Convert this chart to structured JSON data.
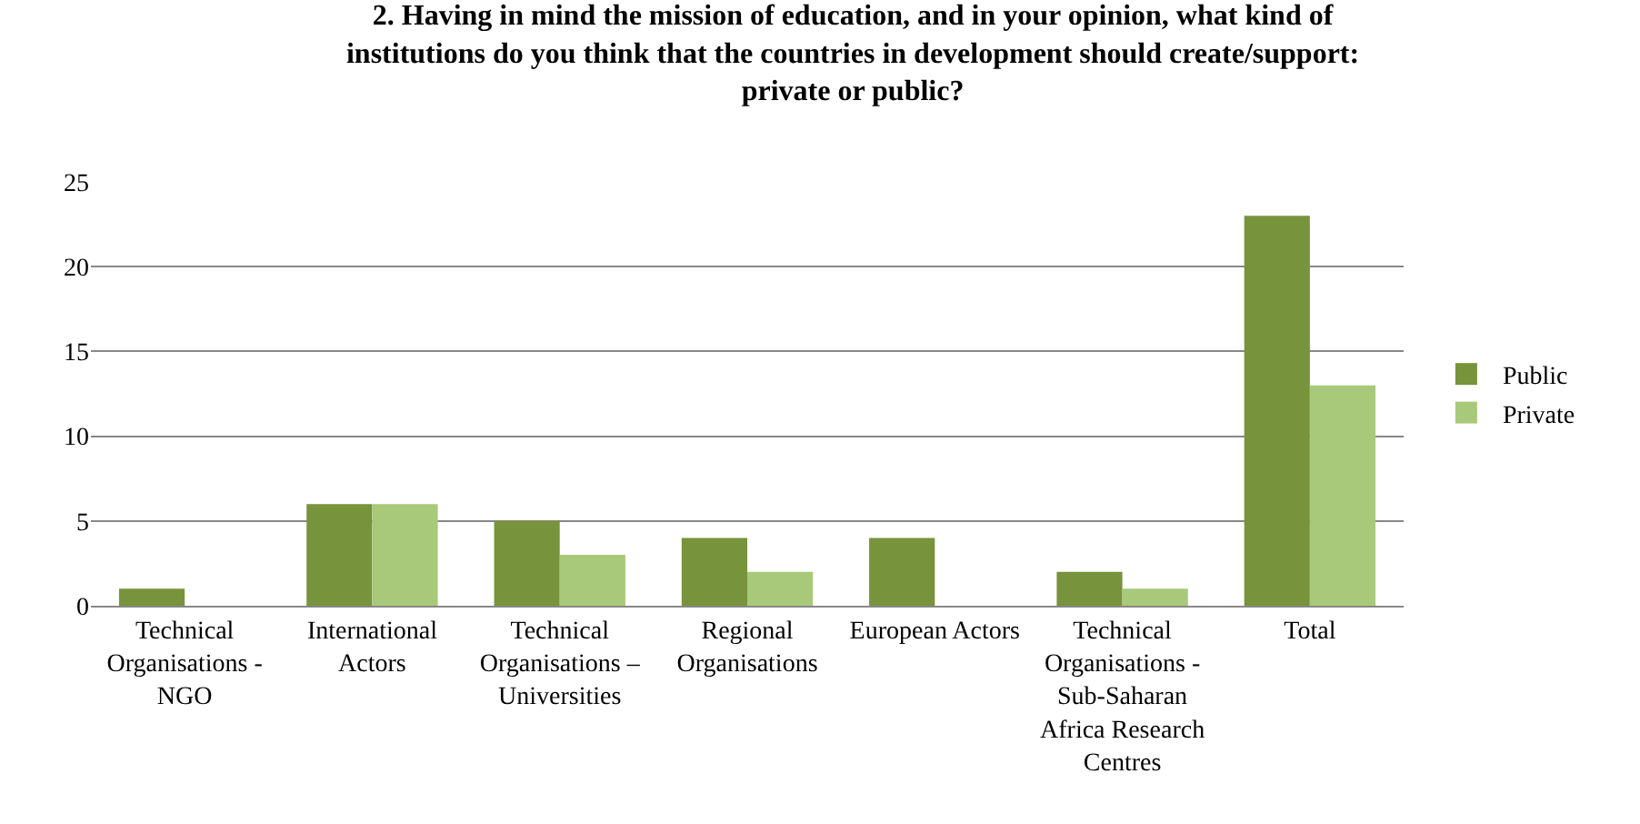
{
  "chart_data": {
    "type": "bar",
    "title": "2. Having in mind the mission of education, and in your opinion, what kind of institutions do you think that the countries in development should create/support: private or public?",
    "categories": [
      "Technical Organisations - NGO",
      "International Actors",
      "Technical Organisations – Universities",
      "Regional Organisations",
      "European Actors",
      "Technical Organisations - Sub-Saharan Africa Research Centres",
      "Total"
    ],
    "series": [
      {
        "name": "Public",
        "color": "#77933c",
        "values": [
          1,
          6,
          5,
          4,
          4,
          2,
          23
        ]
      },
      {
        "name": "Private",
        "color": "#a9c97a",
        "values": [
          0,
          6,
          3,
          2,
          0,
          1,
          13
        ]
      }
    ],
    "ylim": [
      0,
      25
    ],
    "yticks": [
      0,
      5,
      10,
      15,
      20,
      25
    ],
    "grid": "y",
    "legend": "right"
  }
}
